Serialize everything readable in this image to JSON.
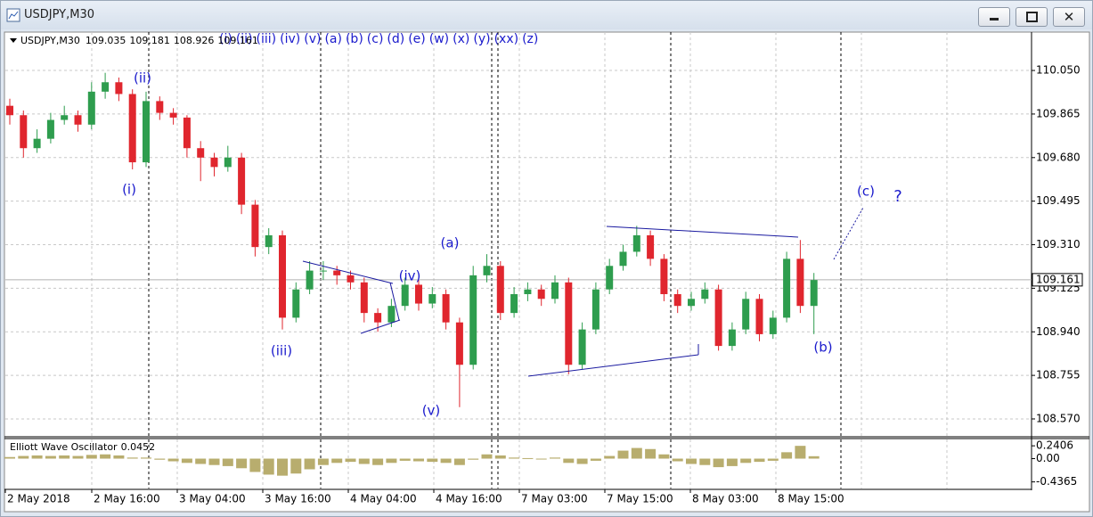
{
  "window_title": "USDJPY,M30",
  "chart_data": {
    "type": "candlestick",
    "symbol": "USDJPY,M30",
    "header_values": [
      109.035,
      109.181,
      108.926,
      109.161
    ],
    "current_price": 109.161,
    "object_labels": [
      "(i)",
      "(ii)",
      "(iii)",
      "(iv)",
      "(v)",
      "(a)",
      "(b)",
      "(c)",
      "(d)",
      "(e)",
      "(w)",
      "(x)",
      "(y)",
      "(xx)",
      "(z)"
    ],
    "wave_labels": [
      "(ii)",
      "(i)",
      "(iii)",
      "(iv)",
      "(v)",
      "(a)",
      "(b)",
      "(c)",
      "?"
    ],
    "up_color": "#2e9d4e",
    "down_color": "#e0262e",
    "ylim": [
      108.498,
      110.213
    ],
    "yticks": [
      {
        "value": 110.05,
        "label": "110.050"
      },
      109.865,
      {
        "value": 109.68,
        "label": "109.680"
      },
      109.495,
      {
        "value": 109.31,
        "label": "109.310"
      },
      109.125,
      {
        "value": 108.94,
        "label": "108.940"
      },
      108.755,
      {
        "value": 108.57,
        "label": "108.570"
      }
    ],
    "time_labels": [
      "2 May 2018",
      "2 May 16:00",
      "3 May 04:00",
      "3 May 16:00",
      "4 May 04:00",
      "4 May 16:00",
      "7 May 03:00",
      "7 May 15:00",
      "8 May 03:00",
      "8 May 15:00"
    ],
    "candles": [
      [
        109.9,
        109.93,
        109.82,
        109.86
      ],
      [
        109.86,
        109.88,
        109.68,
        109.72
      ],
      [
        109.72,
        109.8,
        109.7,
        109.76
      ],
      [
        109.76,
        109.87,
        109.74,
        109.84
      ],
      [
        109.84,
        109.9,
        109.82,
        109.86
      ],
      [
        109.86,
        109.88,
        109.79,
        109.82
      ],
      [
        109.82,
        110.0,
        109.8,
        109.96
      ],
      [
        109.96,
        110.04,
        109.93,
        110.0
      ],
      [
        110.0,
        110.02,
        109.92,
        109.95
      ],
      [
        109.95,
        109.97,
        109.63,
        109.66
      ],
      [
        109.66,
        109.96,
        109.64,
        109.92
      ],
      [
        109.92,
        109.94,
        109.84,
        109.87
      ],
      [
        109.87,
        109.89,
        109.82,
        109.85
      ],
      [
        109.85,
        109.86,
        109.68,
        109.72
      ],
      [
        109.72,
        109.75,
        109.58,
        109.68
      ],
      [
        109.68,
        109.7,
        109.6,
        109.64
      ],
      [
        109.64,
        109.73,
        109.62,
        109.68
      ],
      [
        109.68,
        109.7,
        109.44,
        109.48
      ],
      [
        109.48,
        109.5,
        109.26,
        109.3
      ],
      [
        109.3,
        109.38,
        109.27,
        109.35
      ],
      [
        109.35,
        109.37,
        108.95,
        109.0
      ],
      [
        109.0,
        109.15,
        108.98,
        109.12
      ],
      [
        109.12,
        109.24,
        109.1,
        109.2
      ],
      [
        109.2,
        109.24,
        109.16,
        109.2
      ],
      [
        109.2,
        109.22,
        109.14,
        109.18
      ],
      [
        109.18,
        109.2,
        109.12,
        109.15
      ],
      [
        109.15,
        109.17,
        108.98,
        109.02
      ],
      [
        109.02,
        109.04,
        108.94,
        108.98
      ],
      [
        108.98,
        109.08,
        108.96,
        109.05
      ],
      [
        109.05,
        109.17,
        109.03,
        109.14
      ],
      [
        109.14,
        109.16,
        109.03,
        109.06
      ],
      [
        109.06,
        109.13,
        109.04,
        109.1
      ],
      [
        109.1,
        109.12,
        108.95,
        108.98
      ],
      [
        108.98,
        109.0,
        108.62,
        108.8
      ],
      [
        108.8,
        109.22,
        108.78,
        109.18
      ],
      [
        109.18,
        109.27,
        109.15,
        109.22
      ],
      [
        109.22,
        109.24,
        108.99,
        109.02
      ],
      [
        109.02,
        109.13,
        109.0,
        109.1
      ],
      [
        109.1,
        109.15,
        109.07,
        109.12
      ],
      [
        109.12,
        109.14,
        109.05,
        109.08
      ],
      [
        109.08,
        109.18,
        109.06,
        109.15
      ],
      [
        109.15,
        109.17,
        108.76,
        108.8
      ],
      [
        108.8,
        108.98,
        108.78,
        108.95
      ],
      [
        108.95,
        109.15,
        108.93,
        109.12
      ],
      [
        109.12,
        109.25,
        109.1,
        109.22
      ],
      [
        109.22,
        109.31,
        109.2,
        109.28
      ],
      [
        109.28,
        109.39,
        109.26,
        109.35
      ],
      [
        109.35,
        109.37,
        109.22,
        109.25
      ],
      [
        109.25,
        109.27,
        109.07,
        109.1
      ],
      [
        109.1,
        109.12,
        109.02,
        109.05
      ],
      [
        109.05,
        109.11,
        109.03,
        109.08
      ],
      [
        109.08,
        109.15,
        109.06,
        109.12
      ],
      [
        109.12,
        109.14,
        108.86,
        108.88
      ],
      [
        108.88,
        108.98,
        108.86,
        108.95
      ],
      [
        108.95,
        109.11,
        108.93,
        109.08
      ],
      [
        109.08,
        109.1,
        108.9,
        108.93
      ],
      [
        108.93,
        109.03,
        108.91,
        109.0
      ],
      [
        109.0,
        109.28,
        108.98,
        109.25
      ],
      [
        109.25,
        109.33,
        109.02,
        109.05
      ],
      [
        109.05,
        109.19,
        108.93,
        109.16
      ]
    ],
    "oscillator": {
      "name": "Elliott Wave Oscillator",
      "value": 0.0452,
      "color": "#b8ad6e",
      "ylim": [
        -0.56,
        0.36
      ],
      "yticks": [
        0.2406,
        {
          "value": 0,
          "label": "0.00"
        },
        -0.4365
      ],
      "values": [
        0.03,
        0.05,
        0.06,
        0.05,
        0.06,
        0.05,
        0.07,
        0.08,
        0.06,
        0.02,
        0.02,
        -0.02,
        -0.05,
        -0.08,
        -0.1,
        -0.12,
        -0.14,
        -0.18,
        -0.25,
        -0.3,
        -0.32,
        -0.28,
        -0.2,
        -0.12,
        -0.08,
        -0.06,
        -0.1,
        -0.12,
        -0.08,
        -0.04,
        -0.05,
        -0.06,
        -0.08,
        -0.12,
        -0.02,
        0.08,
        0.06,
        0.02,
        0.01,
        0.0,
        0.02,
        -0.08,
        -0.1,
        -0.04,
        0.05,
        0.15,
        0.2,
        0.18,
        0.08,
        -0.05,
        -0.1,
        -0.12,
        -0.16,
        -0.14,
        -0.08,
        -0.06,
        -0.04,
        0.12,
        0.24,
        0.0452
      ]
    }
  }
}
